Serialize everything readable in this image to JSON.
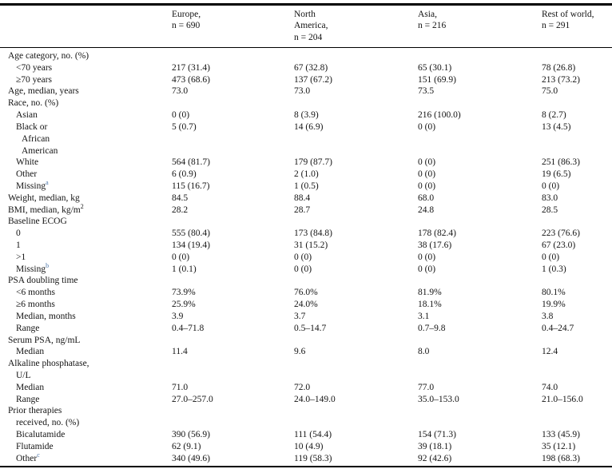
{
  "colors": {
    "footnote_marker": "#4a74a8",
    "rule": "#000000",
    "text": "#141414"
  },
  "table": {
    "header": {
      "stub": "",
      "columns": [
        {
          "lines": [
            "Europe,",
            "n = 690"
          ]
        },
        {
          "lines": [
            "North",
            "America,",
            "n = 204"
          ]
        },
        {
          "lines": [
            "Asia,",
            "n = 216"
          ]
        },
        {
          "lines": [
            "Rest of world,",
            "n = 291"
          ]
        }
      ]
    },
    "rows": [
      {
        "label": "Age category, no. (%)",
        "indent": 0,
        "values": [
          "",
          "",
          "",
          ""
        ]
      },
      {
        "label": "<70 years",
        "indent": 1,
        "values": [
          "217 (31.4)",
          "67 (32.8)",
          "65 (30.1)",
          "78 (26.8)"
        ]
      },
      {
        "label": "≥70 years",
        "indent": 1,
        "values": [
          "473 (68.6)",
          "137 (67.2)",
          "151 (69.9)",
          "213 (73.2)"
        ]
      },
      {
        "label": "Age, median, years",
        "indent": 0,
        "values": [
          "73.0",
          "73.0",
          "73.5",
          "75.0"
        ]
      },
      {
        "label": "Race, no. (%)",
        "indent": 0,
        "values": [
          "",
          "",
          "",
          ""
        ]
      },
      {
        "label": "Asian",
        "indent": 1,
        "values": [
          "0 (0)",
          "8 (3.9)",
          "216 (100.0)",
          "8 (2.7)"
        ]
      },
      {
        "label": "Black or",
        "indent": 1,
        "extra": [
          "African",
          "American"
        ],
        "extra_indent": 2,
        "values": [
          "5 (0.7)",
          "14 (6.9)",
          "0 (0)",
          "13 (4.5)"
        ]
      },
      {
        "label": "White",
        "indent": 1,
        "values": [
          "564 (81.7)",
          "179 (87.7)",
          "0 (0)",
          "251 (86.3)"
        ]
      },
      {
        "label": "Other",
        "indent": 1,
        "values": [
          "6 (0.9)",
          "2 (1.0)",
          "0 (0)",
          "19 (6.5)"
        ]
      },
      {
        "label": "Missing",
        "sup": "a",
        "indent": 1,
        "values": [
          "115 (16.7)",
          "1 (0.5)",
          "0 (0)",
          "0 (0)"
        ]
      },
      {
        "label": "Weight, median, kg",
        "indent": 0,
        "values": [
          "84.5",
          "88.4",
          "68.0",
          "83.0"
        ]
      },
      {
        "label": "BMI, median, kg/m",
        "sup_black": "2",
        "indent": 0,
        "values": [
          "28.2",
          "28.7",
          "24.8",
          "28.5"
        ]
      },
      {
        "label": "Baseline ECOG",
        "indent": 0,
        "values": [
          "",
          "",
          "",
          ""
        ]
      },
      {
        "label": "0",
        "indent": 1,
        "values": [
          "555 (80.4)",
          "173 (84.8)",
          "178 (82.4)",
          "223 (76.6)"
        ]
      },
      {
        "label": "1",
        "indent": 1,
        "values": [
          "134 (19.4)",
          "31 (15.2)",
          "38 (17.6)",
          "67 (23.0)"
        ]
      },
      {
        "label": ">1",
        "indent": 1,
        "values": [
          "0 (0)",
          "0 (0)",
          "0 (0)",
          "0 (0)"
        ]
      },
      {
        "label": "Missing",
        "sup": "b",
        "indent": 1,
        "values": [
          "1 (0.1)",
          "0 (0)",
          "0 (0)",
          "1 (0.3)"
        ]
      },
      {
        "label": "PSA doubling time",
        "indent": 0,
        "values": [
          "",
          "",
          "",
          ""
        ]
      },
      {
        "label": "<6 months",
        "indent": 1,
        "values": [
          "73.9%",
          "76.0%",
          "81.9%",
          "80.1%"
        ]
      },
      {
        "label": "≥6 months",
        "indent": 1,
        "values": [
          "25.9%",
          "24.0%",
          "18.1%",
          "19.9%"
        ]
      },
      {
        "label": "Median, months",
        "indent": 1,
        "values": [
          "3.9",
          "3.7",
          "3.1",
          "3.8"
        ]
      },
      {
        "label": "Range",
        "indent": 1,
        "values": [
          "0.4–71.8",
          "0.5–14.7",
          "0.7–9.8",
          "0.4–24.7"
        ]
      },
      {
        "label": "Serum PSA, ng/mL",
        "indent": 0,
        "values": [
          "",
          "",
          "",
          ""
        ]
      },
      {
        "label": "Median",
        "indent": 1,
        "values": [
          "11.4",
          "9.6",
          "8.0",
          "12.4"
        ]
      },
      {
        "label": "Alkaline phosphatase,",
        "indent": 0,
        "extra": [
          "U/L"
        ],
        "extra_indent": 1,
        "values": [
          "",
          "",
          "",
          ""
        ]
      },
      {
        "label": "Median",
        "indent": 1,
        "values": [
          "71.0",
          "72.0",
          "77.0",
          "74.0"
        ]
      },
      {
        "label": "Range",
        "indent": 1,
        "values": [
          "27.0–257.0",
          "24.0–149.0",
          "35.0–153.0",
          "21.0–156.0"
        ]
      },
      {
        "label": "Prior therapies",
        "indent": 0,
        "extra": [
          "received, no. (%)"
        ],
        "extra_indent": 1,
        "values": [
          "",
          "",
          "",
          ""
        ]
      },
      {
        "label": "Bicalutamide",
        "indent": 1,
        "values": [
          "390 (56.9)",
          "111 (54.4)",
          "154 (71.3)",
          "133 (45.9)"
        ]
      },
      {
        "label": "Flutamide",
        "indent": 1,
        "values": [
          "62 (9.1)",
          "10 (4.9)",
          "39 (18.1)",
          "35 (12.1)"
        ]
      },
      {
        "label": "Other",
        "sup": "c",
        "indent": 1,
        "values": [
          "340 (49.6)",
          "119 (58.3)",
          "92 (42.6)",
          "198 (68.3)"
        ]
      }
    ]
  }
}
